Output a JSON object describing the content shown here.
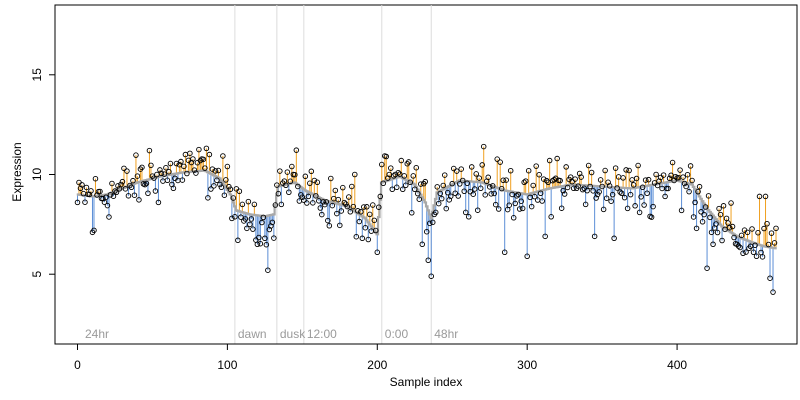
{
  "chart_data": {
    "type": "scatter",
    "title": "",
    "xlabel": "Sample index",
    "ylabel": "Expression",
    "xlim": [
      -15,
      480
    ],
    "ylim": [
      1.5,
      18.5
    ],
    "x_ticks": [
      0,
      100,
      200,
      300,
      400
    ],
    "y_ticks": [
      5,
      10,
      15
    ],
    "grid": false,
    "legend": "none",
    "colors": {
      "above_fit": "#f0a020",
      "below_fit": "#5b8ed6",
      "fit": "#a8a8a8",
      "points": "#000000",
      "phase_lines": "#dcdcdc",
      "phase_labels": "#9a9a9a"
    },
    "phase_markers": [
      {
        "label": "24hr",
        "x": 3
      },
      {
        "label": "dawn",
        "x": 105
      },
      {
        "label": "dusk",
        "x": 133
      },
      {
        "label": "12:00",
        "x": 151
      },
      {
        "label": "0:00",
        "x": 203
      },
      {
        "label": "48hr",
        "x": 236
      }
    ],
    "phase_dividers": [
      105,
      133,
      151,
      203,
      236
    ],
    "series": [
      {
        "n_samples": 467,
        "fitted_profile": [
          [
            0,
            9.0
          ],
          [
            10,
            8.9
          ],
          [
            20,
            9.0
          ],
          [
            30,
            9.3
          ],
          [
            40,
            9.6
          ],
          [
            55,
            9.9
          ],
          [
            70,
            10.1
          ],
          [
            85,
            10.2
          ],
          [
            95,
            9.8
          ],
          [
            102,
            9.0
          ],
          [
            106,
            8.2
          ],
          [
            115,
            8.0
          ],
          [
            125,
            7.9
          ],
          [
            131,
            8.0
          ],
          [
            134,
            9.4
          ],
          [
            145,
            9.6
          ],
          [
            152,
            9.2
          ],
          [
            165,
            8.7
          ],
          [
            180,
            8.4
          ],
          [
            192,
            7.8
          ],
          [
            200,
            7.0
          ],
          [
            203,
            9.6
          ],
          [
            215,
            9.9
          ],
          [
            225,
            9.5
          ],
          [
            232,
            8.6
          ],
          [
            236,
            7.8
          ],
          [
            240,
            9.1
          ],
          [
            255,
            9.7
          ],
          [
            270,
            9.6
          ],
          [
            285,
            9.2
          ],
          [
            300,
            9.0
          ],
          [
            315,
            9.3
          ],
          [
            330,
            9.5
          ],
          [
            350,
            9.4
          ],
          [
            370,
            9.3
          ],
          [
            385,
            9.5
          ],
          [
            400,
            9.7
          ],
          [
            410,
            9.5
          ],
          [
            420,
            8.3
          ],
          [
            430,
            7.4
          ],
          [
            440,
            6.9
          ],
          [
            450,
            6.6
          ],
          [
            458,
            6.4
          ],
          [
            466,
            6.3
          ]
        ],
        "key_points": [
          [
            0,
            8.6
          ],
          [
            1,
            9.6
          ],
          [
            10,
            7.1
          ],
          [
            11,
            7.2
          ],
          [
            48,
            11.2
          ],
          [
            53,
            10.0
          ],
          [
            54,
            8.6
          ],
          [
            72,
            11.0
          ],
          [
            82,
            10.7
          ],
          [
            88,
            11.0
          ],
          [
            94,
            10.2
          ],
          [
            100,
            10.4
          ],
          [
            103,
            7.8
          ],
          [
            107,
            6.7
          ],
          [
            110,
            8.5
          ],
          [
            115,
            7.5
          ],
          [
            120,
            6.5
          ],
          [
            125,
            6.8
          ],
          [
            127,
            5.2
          ],
          [
            130,
            7.6
          ],
          [
            143,
            10.4
          ],
          [
            158,
            9.7
          ],
          [
            185,
            10.0
          ],
          [
            190,
            6.8
          ],
          [
            195,
            8.0
          ],
          [
            200,
            6.1
          ],
          [
            203,
            10.5
          ],
          [
            206,
            10.9
          ],
          [
            212,
            10.0
          ],
          [
            216,
            10.7
          ],
          [
            230,
            6.5
          ],
          [
            234,
            5.7
          ],
          [
            236,
            4.9
          ],
          [
            251,
            10.3
          ],
          [
            257,
            9.7
          ],
          [
            271,
            11.4
          ],
          [
            285,
            6.1
          ],
          [
            290,
            9.0
          ],
          [
            300,
            5.9
          ],
          [
            312,
            6.9
          ],
          [
            315,
            10.7
          ],
          [
            320,
            10.8
          ],
          [
            345,
            6.9
          ],
          [
            350,
            9.4
          ],
          [
            352,
            10.2
          ],
          [
            358,
            6.8
          ],
          [
            368,
            10.2
          ],
          [
            375,
            8.1
          ],
          [
            382,
            7.9
          ],
          [
            390,
            9.3
          ],
          [
            386,
            10.0
          ],
          [
            397,
            10.6
          ],
          [
            403,
            8.2
          ],
          [
            410,
            9.7
          ],
          [
            413,
            7.3
          ],
          [
            420,
            5.3
          ],
          [
            424,
            6.5
          ],
          [
            440,
            6.5
          ],
          [
            448,
            6.3
          ],
          [
            451,
            6.1
          ],
          [
            455,
            8.9
          ],
          [
            459,
            8.9
          ],
          [
            462,
            4.8
          ],
          [
            464,
            4.1
          ],
          [
            466,
            7.3
          ]
        ]
      }
    ]
  }
}
